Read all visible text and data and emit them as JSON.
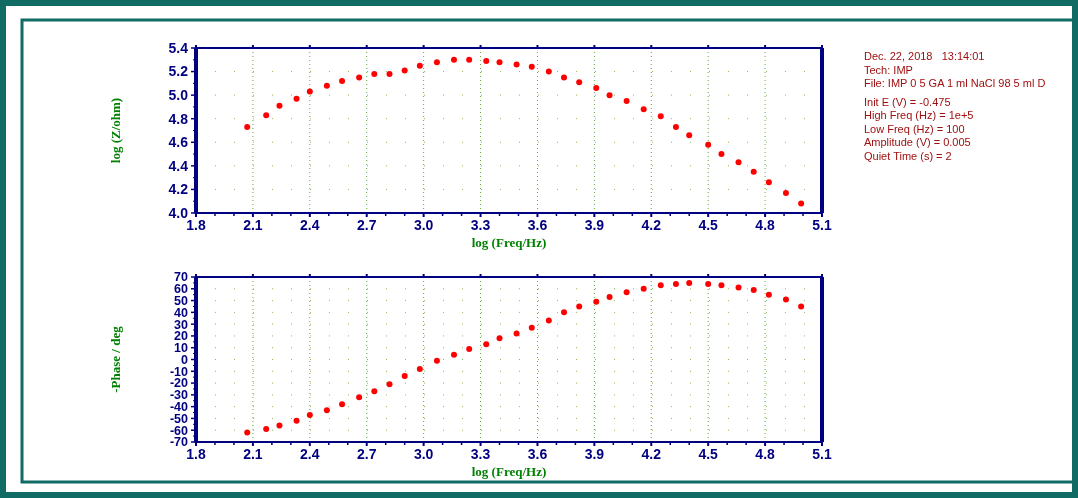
{
  "chart_data": [
    {
      "type": "scatter",
      "xlabel": "log (Freq/Hz)",
      "ylabel": "log (Z/ohm)",
      "marker": "circle",
      "grid": true,
      "x": [
        2.07,
        2.17,
        2.24,
        2.33,
        2.4,
        2.49,
        2.57,
        2.66,
        2.74,
        2.82,
        2.9,
        2.98,
        3.07,
        3.16,
        3.24,
        3.33,
        3.4,
        3.49,
        3.57,
        3.66,
        3.74,
        3.82,
        3.91,
        3.98,
        4.07,
        4.16,
        4.25,
        4.33,
        4.4,
        4.5,
        4.57,
        4.66,
        4.74,
        4.82,
        4.91,
        4.99
      ],
      "series": [
        {
          "color": "#ff0000",
          "values": [
            4.73,
            4.83,
            4.91,
            4.97,
            5.03,
            5.08,
            5.12,
            5.15,
            5.18,
            5.18,
            5.21,
            5.25,
            5.28,
            5.3,
            5.3,
            5.29,
            5.28,
            5.26,
            5.24,
            5.2,
            5.15,
            5.11,
            5.06,
            5.0,
            4.95,
            4.88,
            4.82,
            4.73,
            4.66,
            4.58,
            4.5,
            4.43,
            4.35,
            4.26,
            4.17,
            4.08
          ]
        }
      ],
      "xlim": [
        1.8,
        5.1
      ],
      "ylim": [
        4.0,
        5.4
      ],
      "xticks": [
        {
          "value": 1.8,
          "label": "1.8"
        },
        {
          "value": 2.1,
          "label": "2.1"
        },
        {
          "value": 2.4,
          "label": "2.4"
        },
        {
          "value": 2.7,
          "label": "2.7"
        },
        {
          "value": 3.0,
          "label": "3.0"
        },
        {
          "value": 3.3,
          "label": "3.3"
        },
        {
          "value": 3.6,
          "label": "3.6"
        },
        {
          "value": 3.9,
          "label": "3.9"
        },
        {
          "value": 4.2,
          "label": "4.2"
        },
        {
          "value": 4.5,
          "label": "4.5"
        },
        {
          "value": 4.8,
          "label": "4.8"
        },
        {
          "value": 5.1,
          "label": "5.1"
        }
      ],
      "yticks": [
        {
          "value": 4.0,
          "label": "4.0"
        },
        {
          "value": 4.2,
          "label": "4.2"
        },
        {
          "value": 4.4,
          "label": "4.4"
        },
        {
          "value": 4.6,
          "label": "4.6"
        },
        {
          "value": 4.8,
          "label": "4.8"
        },
        {
          "value": 5.0,
          "label": "5.0"
        },
        {
          "value": 5.2,
          "label": "5.2"
        },
        {
          "value": 5.4,
          "label": "5.4"
        }
      ],
      "annotations": [
        "Dec. 22, 2018   13:14:01",
        "Tech: IMP",
        "File: IMP 0 5 GA 1 ml NaCl 98 5 ml D",
        "Init E (V) = -0.475",
        "High Freq (Hz) = 1e+5",
        "Low Freq (Hz) = 100",
        "Amplitude (V) = 0.005",
        "Quiet Time (s) = 2"
      ]
    },
    {
      "type": "scatter",
      "xlabel": "log (Freq/Hz)",
      "ylabel": "-Phase / deg",
      "marker": "circle",
      "grid": true,
      "x": [
        2.07,
        2.17,
        2.24,
        2.33,
        2.4,
        2.49,
        2.57,
        2.66,
        2.74,
        2.82,
        2.9,
        2.98,
        3.07,
        3.16,
        3.24,
        3.33,
        3.4,
        3.49,
        3.57,
        3.66,
        3.74,
        3.82,
        3.91,
        3.98,
        4.07,
        4.16,
        4.25,
        4.33,
        4.4,
        4.5,
        4.57,
        4.66,
        4.74,
        4.82,
        4.91,
        4.99
      ],
      "series": [
        {
          "color": "#ff0000",
          "values": [
            -62,
            -59,
            -56,
            -52,
            -47,
            -43,
            -38,
            -32,
            -27,
            -21,
            -14,
            -8,
            -1,
            4,
            9,
            13,
            18,
            22,
            27,
            33,
            40,
            45,
            49,
            53,
            57,
            60,
            63,
            64,
            65,
            64,
            63,
            61,
            59,
            55,
            51,
            45
          ]
        }
      ],
      "xlim": [
        1.8,
        5.1
      ],
      "ylim": [
        -70,
        70
      ],
      "xticks": [
        {
          "value": 1.8,
          "label": "1.8"
        },
        {
          "value": 2.1,
          "label": "2.1"
        },
        {
          "value": 2.4,
          "label": "2.4"
        },
        {
          "value": 2.7,
          "label": "2.7"
        },
        {
          "value": 3.0,
          "label": "3.0"
        },
        {
          "value": 3.3,
          "label": "3.3"
        },
        {
          "value": 3.6,
          "label": "3.6"
        },
        {
          "value": 3.9,
          "label": "3.9"
        },
        {
          "value": 4.2,
          "label": "4.2"
        },
        {
          "value": 4.5,
          "label": "4.5"
        },
        {
          "value": 4.8,
          "label": "4.8"
        },
        {
          "value": 5.1,
          "label": "5.1"
        }
      ],
      "yticks": [
        -70,
        -60,
        -50,
        -40,
        -30,
        -20,
        -10,
        0,
        10,
        20,
        30,
        40,
        50,
        60,
        70
      ]
    }
  ]
}
